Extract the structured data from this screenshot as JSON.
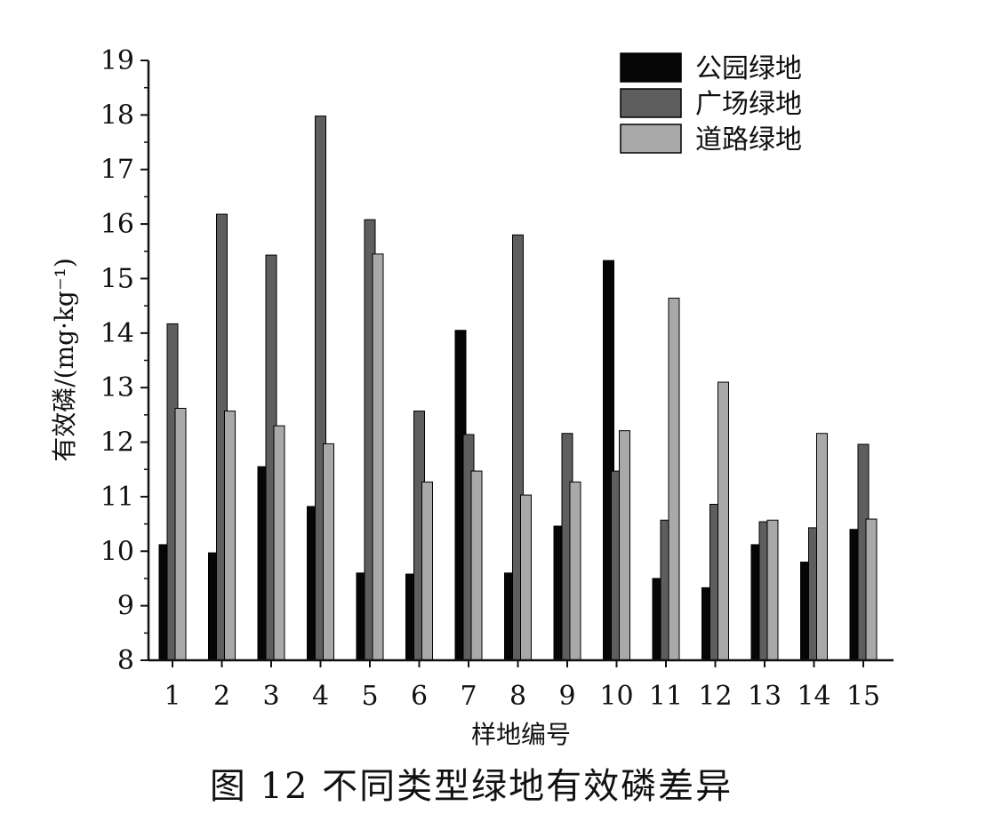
{
  "chart_data": {
    "type": "bar",
    "caption": "图 12   不同类型绿地有效磷差异",
    "xlabel": "样地编号",
    "ylabel": "有效磷/(mg·kg⁻¹)",
    "ylim": [
      8,
      19
    ],
    "yticks": [
      "8",
      "9",
      "10",
      "11",
      "12",
      "13",
      "14",
      "15",
      "16",
      "17",
      "18",
      "19"
    ],
    "categories": [
      "1",
      "2",
      "3",
      "4",
      "5",
      "6",
      "7",
      "8",
      "9",
      "10",
      "11",
      "12",
      "13",
      "14",
      "15"
    ],
    "legend_position": "top-right",
    "grid": false,
    "series": [
      {
        "name": "公园绿地",
        "color": "#060606",
        "values": [
          10.12,
          9.97,
          11.55,
          10.82,
          9.6,
          9.58,
          14.05,
          9.6,
          10.46,
          15.33,
          9.5,
          9.33,
          10.12,
          9.8,
          10.4
        ]
      },
      {
        "name": "广场绿地",
        "color": "#5e5e5e",
        "values": [
          14.17,
          16.18,
          15.43,
          17.98,
          16.08,
          12.57,
          12.14,
          15.8,
          12.16,
          11.47,
          10.57,
          10.86,
          10.54,
          10.43,
          11.96
        ]
      },
      {
        "name": "道路绿地",
        "color": "#a9a9a9",
        "values": [
          12.62,
          12.57,
          12.3,
          11.97,
          15.45,
          11.27,
          11.47,
          11.03,
          11.27,
          12.21,
          14.64,
          13.1,
          10.57,
          12.16,
          10.59
        ]
      }
    ]
  }
}
